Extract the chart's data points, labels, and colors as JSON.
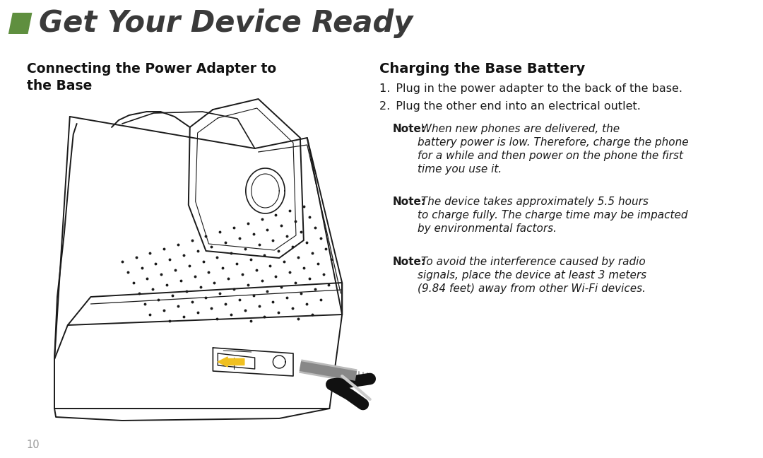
{
  "bg_color": "#ffffff",
  "header_green_color": "#5f8f3f",
  "header_text": "Get Your Device Ready",
  "header_text_color": "#3a3a3a",
  "header_font_size": 30,
  "left_title": "Connecting the Power Adapter to\nthe Base",
  "right_title": "Charging the Base Battery",
  "step1": "1. Plug in the power adapter to the back of the base.",
  "step2": "2. Plug the other end into an electrical outlet.",
  "note1_bold": "Note:",
  "note1_rest": " When new phones are delivered, the\nbattery power is low. Therefore, charge the phone\nfor a while and then power on the phone the first\ntime you use it.",
  "note2_bold": "Note:",
  "note2_rest": " The device takes approximately 5.5 hours\nto charge fully. The charge time may be impacted\nby environmental factors.",
  "note3_bold": "Note:",
  "note3_rest": " To avoid the interference caused by radio\nsignals, place the device at least 3 meters\n(9.84 feet) away from other Wi-Fi devices.",
  "page_number": "10",
  "title_fs": 13.5,
  "body_fs": 11.5,
  "note_fs": 11.0,
  "draw_color": "#1a1a1a",
  "yellow_arrow": "#f0c020"
}
